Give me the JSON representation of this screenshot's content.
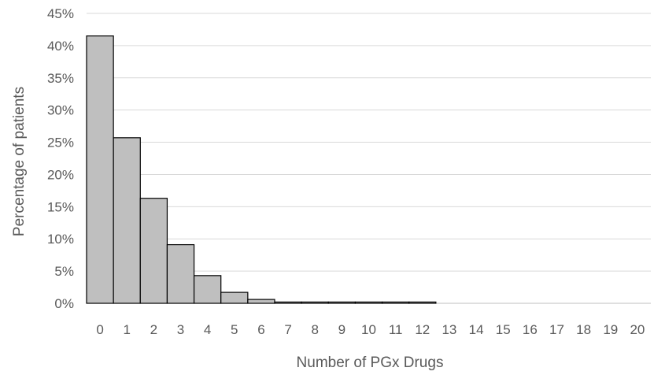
{
  "chart_data": {
    "type": "bar",
    "title": "",
    "xlabel": "Number of PGx Drugs",
    "ylabel": "Percentage of patients",
    "categories": [
      "0",
      "1",
      "2",
      "3",
      "4",
      "5",
      "6",
      "7",
      "8",
      "9",
      "10",
      "11",
      "12",
      "13",
      "14",
      "15",
      "16",
      "17",
      "18",
      "19",
      "20"
    ],
    "values": [
      41.5,
      25.7,
      16.3,
      9.1,
      4.3,
      1.7,
      0.6,
      0.2,
      0.2,
      0.2,
      0.2,
      0.2,
      0.2,
      0,
      0,
      0,
      0,
      0,
      0,
      0,
      0
    ],
    "ylim": [
      0,
      45
    ],
    "yticks": [
      "0%",
      "5%",
      "10%",
      "15%",
      "20%",
      "25%",
      "30%",
      "35%",
      "40%",
      "45%"
    ],
    "grid": true,
    "bar_color": "#bfbfbf",
    "bar_edge_color": "#000000"
  }
}
